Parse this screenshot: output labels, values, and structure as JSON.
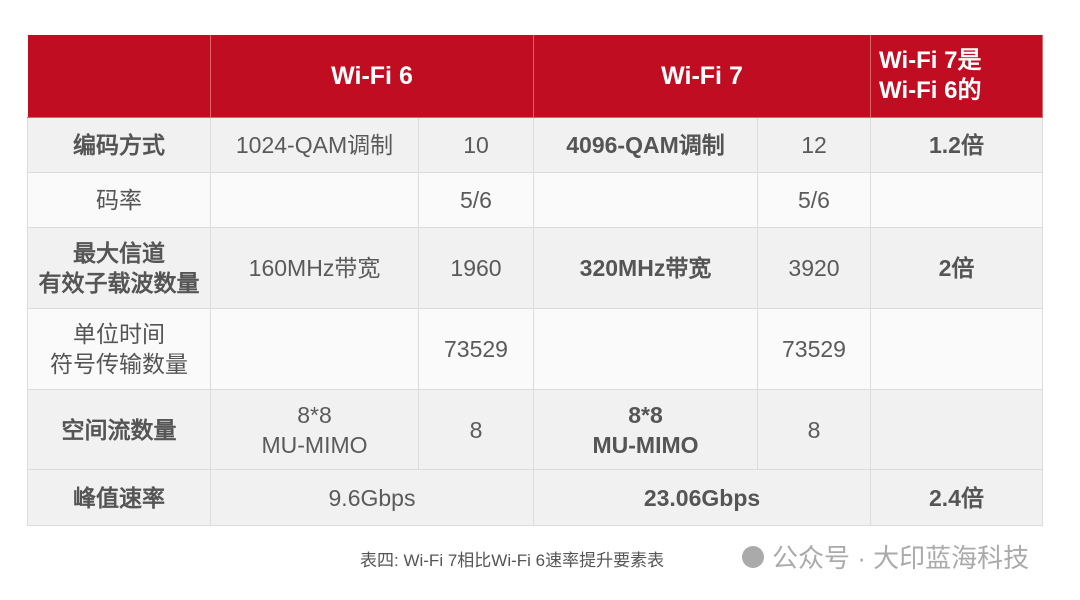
{
  "header": {
    "corner": "",
    "wifi6": "Wi-Fi 6",
    "wifi7": "Wi-Fi 7",
    "ratio_line1": "Wi-Fi 7是",
    "ratio_line2": "Wi-Fi 6的"
  },
  "rows": [
    {
      "label": [
        "编码方式"
      ],
      "w6_desc": [
        "1024-QAM调制"
      ],
      "w6_val": "10",
      "w7_desc": [
        "4096-QAM调制"
      ],
      "w7_val": "12",
      "ratio": "1.2倍",
      "bold": true
    },
    {
      "label": [
        "码率"
      ],
      "w6_desc": [
        ""
      ],
      "w6_val": "5/6",
      "w7_desc": [
        ""
      ],
      "w7_val": "5/6",
      "ratio": "",
      "bold": false
    },
    {
      "label": [
        "最大信道",
        "有效子载波数量"
      ],
      "w6_desc": [
        "160MHz带宽"
      ],
      "w6_val": "1960",
      "w7_desc": [
        "320MHz带宽"
      ],
      "w7_val": "3920",
      "ratio": "2倍",
      "bold": true
    },
    {
      "label": [
        "单位时间",
        "符号传输数量"
      ],
      "w6_desc": [
        ""
      ],
      "w6_val": "73529",
      "w7_desc": [
        ""
      ],
      "w7_val": "73529",
      "ratio": "",
      "bold": false
    },
    {
      "label": [
        "空间流数量"
      ],
      "w6_desc": [
        "8*8",
        "MU-MIMO"
      ],
      "w6_val": "8",
      "w7_desc": [
        "8*8",
        "MU-MIMO"
      ],
      "w7_val": "8",
      "ratio": "",
      "bold": true
    }
  ],
  "peak": {
    "label": "峰值速率",
    "wifi6": "9.6Gbps",
    "wifi7": "23.06Gbps",
    "ratio": "2.4倍"
  },
  "caption": "表四: Wi-Fi 7相比Wi-Fi 6速率提升要素表",
  "watermark": "公众号 · 大印蓝海科技",
  "colors": {
    "header_bg": "#c00d22",
    "row_alt": "#f1f1f1",
    "row_plain": "#fafafa"
  }
}
